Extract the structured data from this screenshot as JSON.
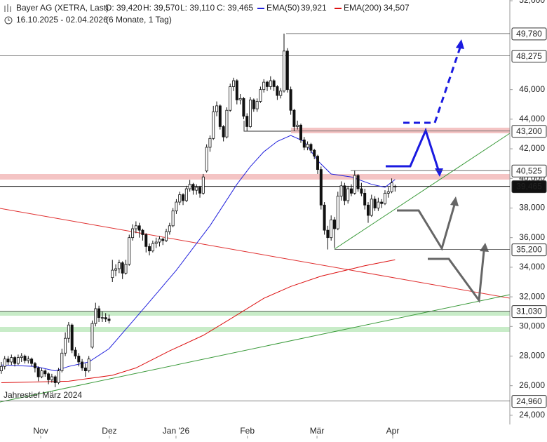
{
  "chart_data": {
    "type": "candlestick",
    "title": "Bayer AG (XETRA, Last)",
    "ohlc_labels": [
      "O: 39,420",
      "H: 39,570",
      "L: 39,110",
      "C: 39,465"
    ],
    "period": "16.10.2025 - 02.04.2026",
    "period_note": "(6 Monate, 1 Tag)",
    "annotation": "Jahrestief März 2024",
    "ylim": [
      23.38,
      52.05
    ],
    "xlim": [
      -0.4,
      151.1
    ],
    "yticks": [
      {
        "value": 24,
        "label": "24,000"
      },
      {
        "value": 26,
        "label": "26,000"
      },
      {
        "value": 28,
        "label": "28,000"
      },
      {
        "value": 30,
        "label": "30,000"
      },
      {
        "value": 32,
        "label": "32,000"
      },
      {
        "value": 34,
        "label": "34,000"
      },
      {
        "value": 36,
        "label": "36,000"
      },
      {
        "value": 38,
        "label": "38,000"
      },
      {
        "value": 40,
        "label": "40,000"
      },
      {
        "value": 42,
        "label": "42,000"
      },
      {
        "value": 44,
        "label": "44,000"
      },
      {
        "value": 46,
        "label": "46,000"
      },
      {
        "value": 52,
        "label": "52,000"
      }
    ],
    "xticks": [
      {
        "value": 11.7,
        "label": "Nov"
      },
      {
        "value": 32.1,
        "label": "Dez"
      },
      {
        "value": 51.9,
        "label": "Jan '26"
      },
      {
        "value": 73.1,
        "label": "Feb"
      },
      {
        "value": 93.8,
        "label": "Mär"
      },
      {
        "value": 116.3,
        "label": "Apr"
      }
    ],
    "levels": [
      {
        "value": 49.78,
        "label": "49,780"
      },
      {
        "value": 48.275,
        "label": "48,275"
      },
      {
        "value": 43.2,
        "label": "43,200"
      },
      {
        "value": 40.525,
        "label": "40,525"
      },
      {
        "value": 39.465,
        "label": "39,465"
      },
      {
        "value": 35.2,
        "label": "35,200"
      },
      {
        "value": 31.03,
        "label": "31,030"
      },
      {
        "value": 24.96,
        "label": "24,960"
      }
    ],
    "ohlc": [
      [
        27.0,
        27.6,
        26.8,
        27.3
      ],
      [
        27.3,
        28.0,
        27.1,
        27.8
      ],
      [
        27.8,
        28.0,
        27.4,
        27.6
      ],
      [
        27.6,
        28.1,
        27.4,
        27.9
      ],
      [
        27.9,
        28.0,
        27.3,
        27.5
      ],
      [
        27.5,
        28.1,
        27.4,
        27.9
      ],
      [
        27.9,
        28.2,
        27.6,
        28.0
      ],
      [
        28.0,
        28.1,
        27.5,
        27.7
      ],
      [
        27.7,
        28.0,
        27.5,
        27.8
      ],
      [
        27.8,
        27.9,
        27.3,
        27.5
      ],
      [
        27.5,
        27.6,
        26.9,
        27.2
      ],
      [
        27.2,
        27.3,
        26.3,
        26.6
      ],
      [
        26.6,
        27.2,
        26.5,
        27.0
      ],
      [
        27.0,
        27.1,
        26.6,
        26.8
      ],
      [
        26.8,
        26.9,
        26.1,
        26.4
      ],
      [
        26.4,
        26.8,
        26.2,
        26.6
      ],
      [
        26.6,
        26.7,
        25.9,
        26.2
      ],
      [
        26.2,
        27.2,
        26.1,
        27.0
      ],
      [
        27.0,
        28.5,
        26.9,
        28.2
      ],
      [
        28.2,
        29.6,
        28.0,
        29.2
      ],
      [
        29.2,
        30.3,
        28.9,
        30.1
      ],
      [
        30.1,
        30.2,
        28.2,
        28.4
      ],
      [
        28.4,
        28.6,
        27.8,
        28.0
      ],
      [
        28.0,
        28.2,
        27.3,
        27.6
      ],
      [
        27.6,
        27.8,
        27.0,
        27.2
      ],
      [
        27.2,
        27.5,
        26.6,
        27.0
      ],
      [
        27.0,
        28.0,
        26.9,
        27.8
      ],
      [
        28.6,
        30.4,
        28.5,
        30.2
      ],
      [
        30.2,
        31.6,
        30.0,
        31.2
      ],
      [
        31.2,
        31.4,
        30.3,
        30.6
      ],
      [
        30.6,
        31.0,
        30.3,
        30.6
      ],
      [
        30.6,
        30.9,
        30.3,
        30.5
      ],
      [
        30.5,
        30.8,
        30.2,
        30.4
      ],
      [
        33.3,
        34.5,
        33.0,
        33.8
      ],
      [
        33.8,
        34.2,
        33.4,
        33.9
      ],
      [
        33.9,
        34.5,
        33.6,
        34.3
      ],
      [
        34.3,
        34.4,
        33.2,
        33.6
      ],
      [
        33.6,
        34.5,
        33.5,
        34.2
      ],
      [
        34.2,
        36.2,
        34.1,
        36.0
      ],
      [
        36.0,
        36.9,
        35.8,
        36.6
      ],
      [
        36.6,
        37.1,
        36.3,
        36.8
      ],
      [
        36.8,
        37.0,
        36.0,
        36.5
      ],
      [
        36.5,
        36.6,
        35.8,
        36.2
      ],
      [
        36.2,
        36.3,
        35.0,
        35.4
      ],
      [
        35.4,
        35.6,
        34.8,
        35.1
      ],
      [
        35.1,
        35.8,
        35.0,
        35.6
      ],
      [
        35.6,
        36.0,
        35.3,
        35.7
      ],
      [
        35.7,
        36.1,
        35.4,
        35.9
      ],
      [
        35.9,
        36.0,
        35.5,
        35.8
      ],
      [
        35.8,
        36.6,
        35.7,
        36.4
      ],
      [
        36.4,
        37.0,
        36.2,
        36.8
      ],
      [
        36.8,
        38.0,
        36.7,
        37.8
      ],
      [
        37.8,
        38.6,
        37.6,
        38.4
      ],
      [
        38.4,
        39.1,
        38.2,
        38.9
      ],
      [
        38.9,
        39.0,
        38.2,
        38.5
      ],
      [
        38.5,
        39.5,
        38.4,
        39.3
      ],
      [
        39.3,
        39.9,
        39.1,
        39.6
      ],
      [
        39.6,
        39.7,
        38.9,
        39.2
      ],
      [
        39.2,
        39.6,
        38.9,
        39.4
      ],
      [
        39.4,
        39.5,
        38.7,
        39.0
      ],
      [
        39.0,
        40.3,
        38.9,
        40.1
      ],
      [
        40.5,
        42.3,
        40.4,
        42.1
      ],
      [
        42.1,
        42.9,
        41.8,
        42.7
      ],
      [
        42.7,
        44.9,
        42.6,
        44.5
      ],
      [
        44.5,
        45.2,
        44.2,
        44.9
      ],
      [
        44.9,
        45.0,
        43.3,
        43.5
      ],
      [
        43.5,
        43.6,
        42.5,
        42.8
      ],
      [
        42.8,
        44.8,
        42.7,
        44.6
      ],
      [
        44.6,
        46.4,
        44.5,
        46.2
      ],
      [
        46.2,
        46.8,
        45.9,
        46.6
      ],
      [
        46.6,
        46.7,
        45.0,
        45.3
      ],
      [
        45.3,
        45.7,
        45.0,
        45.4
      ],
      [
        45.4,
        45.5,
        44.0,
        44.2
      ],
      [
        44.2,
        44.4,
        43.2,
        43.5
      ],
      [
        43.5,
        45.5,
        43.4,
        45.3
      ],
      [
        45.3,
        45.4,
        44.5,
        44.7
      ],
      [
        44.7,
        45.4,
        44.5,
        45.2
      ],
      [
        45.2,
        46.2,
        45.1,
        46.0
      ],
      [
        46.0,
        46.7,
        45.8,
        46.5
      ],
      [
        46.5,
        46.6,
        45.9,
        46.2
      ],
      [
        46.2,
        46.9,
        46.0,
        46.6
      ],
      [
        46.6,
        46.7,
        45.9,
        46.2
      ],
      [
        46.2,
        46.3,
        45.3,
        45.6
      ],
      [
        45.6,
        46.1,
        45.4,
        45.9
      ],
      [
        45.9,
        49.78,
        45.8,
        48.6
      ],
      [
        48.6,
        48.8,
        45.8,
        46.0
      ],
      [
        46.0,
        46.2,
        44.3,
        44.6
      ],
      [
        44.6,
        44.7,
        43.2,
        43.5
      ],
      [
        43.5,
        43.9,
        43.3,
        43.6
      ],
      [
        43.6,
        43.7,
        42.4,
        42.6
      ],
      [
        42.6,
        42.8,
        41.9,
        42.1
      ],
      [
        42.1,
        42.5,
        41.9,
        42.3
      ],
      [
        42.3,
        42.4,
        41.7,
        41.9
      ],
      [
        41.9,
        42.0,
        41.3,
        41.5
      ],
      [
        41.5,
        41.6,
        40.3,
        40.6
      ],
      [
        40.6,
        40.8,
        37.9,
        38.2
      ],
      [
        38.2,
        38.4,
        36.2,
        36.5
      ],
      [
        36.5,
        36.8,
        35.2,
        36.0
      ],
      [
        36.0,
        37.5,
        35.8,
        37.2
      ],
      [
        37.2,
        37.4,
        35.3,
        36.6
      ],
      [
        36.6,
        39.1,
        36.5,
        38.8
      ],
      [
        38.8,
        39.8,
        38.5,
        39.5
      ],
      [
        39.5,
        39.7,
        38.2,
        38.5
      ],
      [
        38.5,
        39.5,
        38.3,
        39.3
      ],
      [
        39.3,
        39.6,
        38.8,
        39.0
      ],
      [
        39.0,
        40.525,
        38.9,
        40.2
      ],
      [
        40.2,
        40.3,
        39.1,
        39.3
      ],
      [
        39.3,
        39.7,
        38.8,
        39.0
      ],
      [
        39.0,
        39.3,
        37.9,
        38.2
      ],
      [
        38.2,
        38.4,
        37.0,
        37.5
      ],
      [
        37.5,
        38.9,
        37.4,
        38.6
      ],
      [
        38.6,
        38.8,
        37.8,
        38.0
      ],
      [
        38.0,
        38.7,
        37.8,
        38.4
      ],
      [
        38.4,
        38.6,
        38.0,
        38.3
      ],
      [
        38.3,
        39.2,
        38.2,
        39.0
      ],
      [
        39.0,
        39.4,
        38.7,
        39.1
      ],
      [
        39.1,
        40.0,
        39.0,
        39.7
      ],
      [
        39.42,
        39.57,
        39.11,
        39.465
      ]
    ],
    "lines": [
      {
        "name": "EMA(50)",
        "value_label": "39,921",
        "color": "#2222dd",
        "x": [
          0,
          10,
          16,
          20,
          26,
          32,
          40,
          46,
          52,
          58,
          62,
          66,
          70,
          74,
          78,
          82,
          86,
          90,
          94,
          98,
          104,
          110,
          114,
          117
        ],
        "values": [
          27.4,
          27.3,
          27.0,
          27.3,
          27.6,
          28.5,
          30.6,
          32.2,
          33.8,
          35.6,
          36.8,
          38.2,
          39.6,
          40.8,
          41.8,
          42.5,
          42.9,
          42.5,
          41.2,
          40.3,
          40.1,
          39.6,
          39.4,
          39.921
        ]
      },
      {
        "name": "EMA(200)",
        "value_label": "34,507",
        "color": "#dd1111",
        "x": [
          0,
          20,
          33,
          40,
          50,
          60,
          68,
          78,
          86,
          95,
          108,
          117
        ],
        "values": [
          26.2,
          26.3,
          26.7,
          27.2,
          28.35,
          29.4,
          30.5,
          31.9,
          32.7,
          33.4,
          34.1,
          34.507
        ]
      }
    ]
  }
}
